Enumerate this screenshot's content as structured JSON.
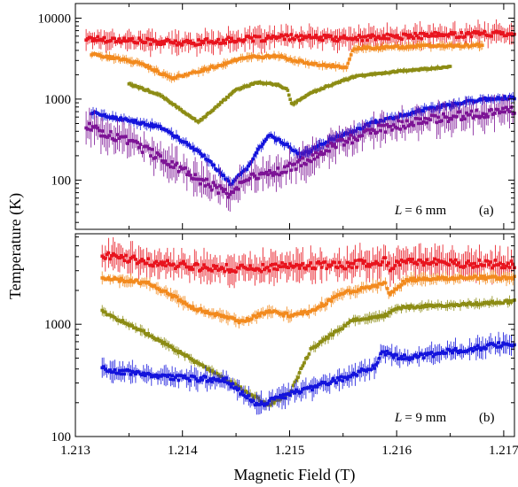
{
  "chart_data": {
    "type": "scatter",
    "xlabel": "Magnetic Field (T)",
    "ylabel": "Temperature (K)",
    "x_range": [
      1.213,
      1.2171
    ],
    "x_ticks": [
      {
        "value": 1.213,
        "label": "1.213"
      },
      {
        "value": 1.214,
        "label": "1.214"
      },
      {
        "value": 1.215,
        "label": "1.215"
      },
      {
        "value": 1.216,
        "label": "1.216"
      },
      {
        "value": 1.217,
        "label": "1.217"
      }
    ],
    "panels": [
      {
        "id": "a",
        "panel_label": "(a)",
        "L_value": "= 6 mm",
        "y_scale": "log",
        "y_range": [
          24.66,
          15135
        ],
        "y_ticks": [
          {
            "value": 100,
            "label": "100"
          },
          {
            "value": 1000,
            "label": "1000"
          },
          {
            "value": 10000,
            "label": "10000"
          }
        ],
        "series": [
          {
            "color": "#e8141e",
            "x_start": 1.2131,
            "x_end": 1.2171,
            "err": 0.12,
            "knots": [
              [
                1.2131,
                5600
              ],
              [
                1.2135,
                5300
              ],
              [
                1.214,
                4900
              ],
              [
                1.2145,
                5400
              ],
              [
                1.215,
                5800
              ],
              [
                1.2155,
                5600
              ],
              [
                1.216,
                5900
              ],
              [
                1.2165,
                6200
              ],
              [
                1.2171,
                6600
              ]
            ]
          },
          {
            "color": "#f28a1e",
            "x_start": 1.21315,
            "x_end": 1.2168,
            "err": 0.05,
            "knots": [
              [
                1.21315,
                3600
              ],
              [
                1.2136,
                2800
              ],
              [
                1.2139,
                1800
              ],
              [
                1.2142,
                2300
              ],
              [
                1.2146,
                3300
              ],
              [
                1.2149,
                3400
              ],
              [
                1.215,
                3100
              ],
              [
                1.2152,
                2700
              ],
              [
                1.21553,
                2500
              ],
              [
                1.2156,
                4200
              ],
              [
                1.2162,
                4500
              ],
              [
                1.2168,
                4600
              ]
            ]
          },
          {
            "color": "#8c8c14",
            "x_start": 1.2135,
            "x_end": 1.2165,
            "err": 0.03,
            "knots": [
              [
                1.2135,
                1550
              ],
              [
                1.2138,
                1100
              ],
              [
                1.21415,
                520
              ],
              [
                1.2145,
                1300
              ],
              [
                1.2147,
                1600
              ],
              [
                1.2149,
                1500
              ],
              [
                1.21498,
                1300
              ],
              [
                1.21502,
                850
              ],
              [
                1.2152,
                1200
              ],
              [
                1.2156,
                1900
              ],
              [
                1.216,
                2200
              ],
              [
                1.2165,
                2500
              ]
            ]
          },
          {
            "color": "#1414dc",
            "x_start": 1.21315,
            "x_end": 1.2171,
            "err": 0.06,
            "knots": [
              [
                1.21315,
                680
              ],
              [
                1.2138,
                450
              ],
              [
                1.2142,
                200
              ],
              [
                1.21445,
                90
              ],
              [
                1.2146,
                140
              ],
              [
                1.2148,
                360
              ],
              [
                1.215,
                260
              ],
              [
                1.2151,
                200
              ],
              [
                1.2154,
                320
              ],
              [
                1.2158,
                520
              ],
              [
                1.2163,
                760
              ],
              [
                1.2168,
                1000
              ],
              [
                1.2171,
                1050
              ]
            ]
          },
          {
            "color": "#7d1496",
            "x_start": 1.2131,
            "x_end": 1.2171,
            "err": 0.18,
            "knots": [
              [
                1.2131,
                460
              ],
              [
                1.2135,
                300
              ],
              [
                1.2139,
                160
              ],
              [
                1.2142,
                95
              ],
              [
                1.21445,
                65
              ],
              [
                1.2146,
                110
              ],
              [
                1.2149,
                130
              ],
              [
                1.2151,
                160
              ],
              [
                1.2154,
                260
              ],
              [
                1.2158,
                420
              ],
              [
                1.2163,
                560
              ],
              [
                1.2167,
                650
              ],
              [
                1.2171,
                720
              ]
            ]
          }
        ]
      },
      {
        "id": "b",
        "panel_label": "(b)",
        "L_value": "= 9 mm",
        "y_scale": "log",
        "y_range": [
          100,
          6400
        ],
        "y_ticks": [
          {
            "value": 100,
            "label": "100"
          },
          {
            "value": 1000,
            "label": "1000"
          }
        ],
        "series": [
          {
            "color": "#e8141e",
            "x_start": 1.21325,
            "x_end": 1.2171,
            "err": 0.12,
            "knots": [
              [
                1.21325,
                4200
              ],
              [
                1.2137,
                3600
              ],
              [
                1.2142,
                3200
              ],
              [
                1.2146,
                3100
              ],
              [
                1.215,
                3400
              ],
              [
                1.2155,
                3300
              ],
              [
                1.2159,
                3700
              ],
              [
                1.21595,
                3000
              ],
              [
                1.216,
                3600
              ],
              [
                1.2165,
                3500
              ],
              [
                1.2171,
                3400
              ]
            ]
          },
          {
            "color": "#f28a1e",
            "x_start": 1.21325,
            "x_end": 1.2171,
            "err": 0.05,
            "knots": [
              [
                1.21325,
                2600
              ],
              [
                1.2137,
                2300
              ],
              [
                1.2141,
                1400
              ],
              [
                1.21455,
                1050
              ],
              [
                1.2148,
                1300
              ],
              [
                1.215,
                1200
              ],
              [
                1.2152,
                1300
              ],
              [
                1.2155,
                1900
              ],
              [
                1.2159,
                2300
              ],
              [
                1.21593,
                1850
              ],
              [
                1.2161,
                2500
              ],
              [
                1.2166,
                2600
              ],
              [
                1.2171,
                2600
              ]
            ]
          },
          {
            "color": "#8c8c14",
            "x_start": 1.21325,
            "x_end": 1.2171,
            "err": 0.04,
            "knots": [
              [
                1.21325,
                1300
              ],
              [
                1.2137,
                800
              ],
              [
                1.2142,
                420
              ],
              [
                1.2146,
                250
              ],
              [
                1.2148,
                190
              ],
              [
                1.215,
                240
              ],
              [
                1.2152,
                600
              ],
              [
                1.2156,
                1100
              ],
              [
                1.2159,
                1200
              ],
              [
                1.216,
                1400
              ],
              [
                1.2166,
                1500
              ],
              [
                1.2171,
                1600
              ]
            ]
          },
          {
            "color": "#1414dc",
            "x_start": 1.21325,
            "x_end": 1.2171,
            "err": 0.08,
            "knots": [
              [
                1.21325,
                400
              ],
              [
                1.2138,
                340
              ],
              [
                1.2144,
                320
              ],
              [
                1.2147,
                190
              ],
              [
                1.215,
                240
              ],
              [
                1.2155,
                330
              ],
              [
                1.2158,
                420
              ],
              [
                1.21585,
                560
              ],
              [
                1.2161,
                500
              ],
              [
                1.2166,
                590
              ],
              [
                1.2171,
                680
              ]
            ]
          }
        ]
      }
    ]
  }
}
